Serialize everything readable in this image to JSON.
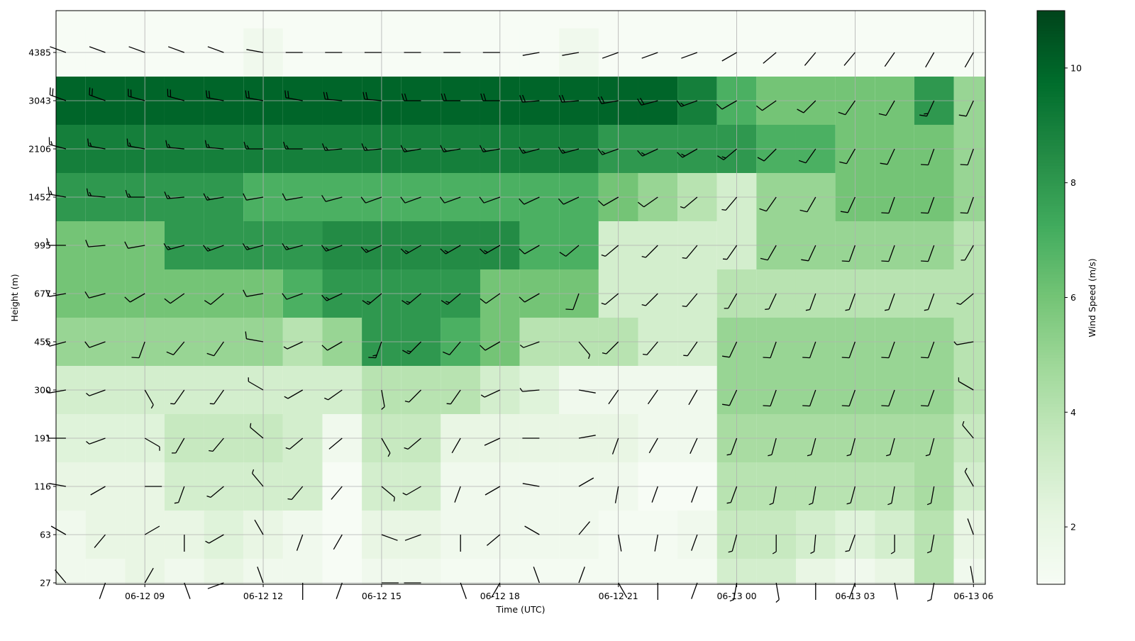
{
  "chart_data": {
    "type": "heatmap-barbs",
    "xlabel": "Time (UTC)",
    "ylabel": "Height (m)",
    "colorbar_label": "Wind Speed (m/s)",
    "x": [
      "06-12 07",
      "06-12 08",
      "06-12 09",
      "06-12 10",
      "06-12 11",
      "06-12 12",
      "06-12 13",
      "06-12 14",
      "06-12 15",
      "06-12 16",
      "06-12 17",
      "06-12 18",
      "06-12 19",
      "06-12 20",
      "06-12 21",
      "06-12 22",
      "06-12 23",
      "06-13 00",
      "06-13 01",
      "06-13 02",
      "06-13 03",
      "06-13 04",
      "06-13 05",
      "06-13 06"
    ],
    "xlim": [
      "06-12 06:45",
      "06-13 06:18"
    ],
    "xticks": [
      "06-12 09",
      "06-12 12",
      "06-12 15",
      "06-12 18",
      "06-12 21",
      "06-13 00",
      "06-13 03",
      "06-13 06"
    ],
    "heights": [
      27,
      63,
      116,
      191,
      300,
      455,
      677,
      995,
      1452,
      2106,
      3043,
      4385
    ],
    "speed": [
      [
        1.5,
        1.5,
        2,
        1.5,
        2,
        1.5,
        1.5,
        1,
        1.5,
        1.5,
        1.2,
        1.2,
        1.2,
        1.2,
        1.2,
        1.2,
        1.2,
        3,
        3,
        2,
        1.5,
        2,
        4,
        1.5
      ],
      [
        1.5,
        2,
        2,
        2,
        2.5,
        2,
        1.5,
        1,
        2,
        2,
        1.5,
        1.5,
        1.5,
        1.5,
        1.2,
        1.2,
        1.5,
        3.5,
        3.5,
        3,
        2.5,
        3,
        4,
        2
      ],
      [
        2,
        2,
        2,
        3,
        3,
        3,
        3,
        1,
        3,
        3,
        1.5,
        1.5,
        1.5,
        1.5,
        1.5,
        1,
        1,
        4,
        4,
        4,
        4,
        4,
        4.5,
        3
      ],
      [
        2.5,
        2.5,
        2.5,
        3.5,
        3.5,
        3.5,
        3,
        1.5,
        3.5,
        3.5,
        2,
        2,
        2,
        2,
        2,
        1.5,
        1.5,
        4.5,
        4.5,
        4.5,
        4.5,
        4.5,
        4.5,
        3.5
      ],
      [
        3,
        3,
        3,
        3,
        3,
        3,
        3,
        3,
        4,
        4,
        4,
        3,
        2.5,
        1.5,
        1.5,
        1.5,
        1.5,
        5,
        5,
        5,
        5,
        5,
        5,
        4
      ],
      [
        5,
        5,
        5,
        5,
        5,
        5,
        4,
        5,
        8,
        8,
        7,
        6,
        4,
        4,
        4,
        3,
        3,
        5,
        5,
        5,
        5,
        5,
        5,
        4
      ],
      [
        6,
        6,
        6,
        6,
        6,
        6,
        7,
        8,
        8,
        8,
        8,
        6,
        6,
        6,
        3,
        3,
        3,
        4,
        4,
        4,
        4,
        4,
        4,
        4
      ],
      [
        6,
        6,
        6,
        8,
        8,
        8,
        8,
        8.5,
        8.5,
        8.5,
        8.5,
        8.5,
        7,
        7,
        3,
        3,
        3,
        3,
        5,
        5,
        5,
        5,
        5,
        4
      ],
      [
        8,
        8,
        8,
        8,
        8,
        7,
        7,
        7,
        7,
        7,
        7,
        7,
        7,
        7,
        6,
        5,
        4,
        3,
        5,
        5,
        6,
        6,
        6,
        5
      ],
      [
        9,
        9,
        9,
        9,
        9,
        9,
        9,
        9,
        9,
        9,
        9,
        9,
        9,
        9,
        8,
        8,
        8,
        8,
        7,
        7,
        6,
        6,
        6,
        5
      ],
      [
        10,
        10,
        10,
        10,
        10,
        10,
        10,
        10,
        10,
        10,
        10,
        10,
        10,
        10,
        10,
        10,
        9,
        7,
        6,
        6,
        6,
        6,
        8,
        5
      ],
      [
        1,
        1,
        1,
        1,
        1,
        1.5,
        1,
        1,
        1,
        1,
        1,
        1,
        1,
        1.5,
        1,
        1,
        1,
        1,
        1,
        1,
        1,
        1,
        1,
        1
      ]
    ],
    "direction": [
      [
        320,
        200,
        30,
        160,
        250,
        340,
        180,
        200,
        90,
        270,
        160,
        210,
        340,
        20,
        150,
        180,
        200,
        190,
        170,
        180,
        200,
        170,
        190,
        350
      ],
      [
        300,
        220,
        60,
        180,
        240,
        330,
        200,
        210,
        110,
        250,
        180,
        230,
        300,
        40,
        170,
        190,
        200,
        195,
        180,
        185,
        200,
        180,
        190,
        340
      ],
      [
        280,
        240,
        90,
        200,
        230,
        320,
        220,
        220,
        130,
        240,
        200,
        240,
        280,
        60,
        190,
        200,
        200,
        200,
        190,
        190,
        195,
        190,
        190,
        330
      ],
      [
        270,
        250,
        120,
        210,
        220,
        310,
        230,
        230,
        150,
        230,
        210,
        245,
        270,
        80,
        200,
        210,
        205,
        200,
        195,
        195,
        195,
        195,
        195,
        320
      ],
      [
        260,
        250,
        150,
        215,
        215,
        300,
        240,
        235,
        170,
        225,
        215,
        245,
        265,
        100,
        215,
        215,
        210,
        205,
        200,
        200,
        200,
        200,
        200,
        300
      ],
      [
        255,
        250,
        200,
        220,
        215,
        280,
        245,
        240,
        200,
        225,
        220,
        240,
        250,
        140,
        225,
        220,
        215,
        205,
        200,
        200,
        200,
        200,
        200,
        260
      ],
      [
        260,
        255,
        240,
        235,
        230,
        260,
        250,
        245,
        230,
        230,
        230,
        235,
        240,
        200,
        230,
        225,
        220,
        210,
        205,
        200,
        200,
        200,
        200,
        230
      ],
      [
        270,
        265,
        260,
        255,
        250,
        255,
        255,
        250,
        245,
        240,
        240,
        240,
        240,
        230,
        230,
        225,
        220,
        215,
        210,
        205,
        200,
        200,
        200,
        210
      ],
      [
        280,
        275,
        270,
        265,
        260,
        260,
        260,
        255,
        250,
        250,
        250,
        250,
        245,
        245,
        240,
        235,
        230,
        220,
        215,
        210,
        205,
        200,
        200,
        200
      ],
      [
        285,
        280,
        280,
        275,
        275,
        270,
        270,
        265,
        265,
        260,
        260,
        260,
        255,
        255,
        250,
        245,
        240,
        230,
        225,
        215,
        210,
        205,
        200,
        200
      ],
      [
        290,
        290,
        285,
        285,
        280,
        280,
        280,
        275,
        275,
        270,
        270,
        270,
        265,
        265,
        260,
        255,
        250,
        240,
        235,
        225,
        215,
        210,
        205,
        205
      ],
      [
        290,
        290,
        290,
        290,
        290,
        280,
        270,
        270,
        270,
        270,
        270,
        270,
        260,
        260,
        250,
        250,
        250,
        240,
        230,
        220,
        220,
        215,
        210,
        210
      ]
    ],
    "clim": [
      1,
      11
    ],
    "cticks": [
      2,
      4,
      6,
      8,
      10
    ],
    "colormap": [
      "#f7fcf5",
      "#e5f5e0",
      "#c7e9c0",
      "#a1d99b",
      "#74c476",
      "#41ab5d",
      "#238b45",
      "#006d2c",
      "#00441b"
    ],
    "barb_color": "#000000",
    "grid": true
  }
}
